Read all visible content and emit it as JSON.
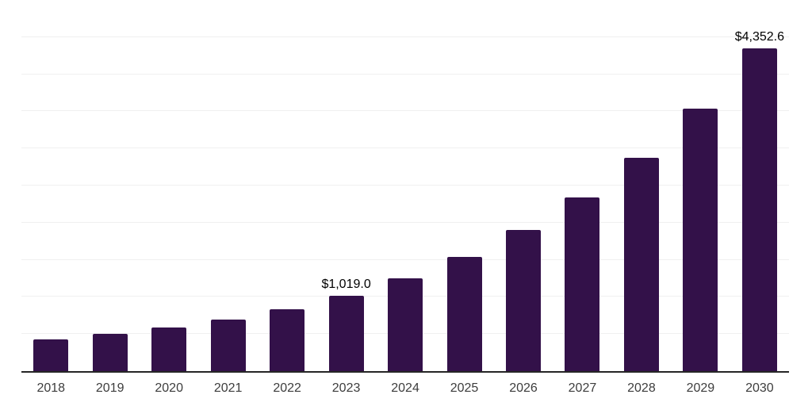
{
  "chart_data": {
    "type": "bar",
    "title": "",
    "xlabel": "",
    "ylabel": "",
    "categories": [
      "2018",
      "2019",
      "2020",
      "2021",
      "2022",
      "2023",
      "2024",
      "2025",
      "2026",
      "2027",
      "2028",
      "2029",
      "2030"
    ],
    "values": [
      425,
      503,
      592,
      699,
      833,
      1019.0,
      1254,
      1543,
      1898,
      2336,
      2874,
      3537,
      4352.6
    ],
    "data_labels": [
      {
        "category": "2023",
        "label": "$1,019.0"
      },
      {
        "category": "2030",
        "label": "$4,352.6"
      }
    ],
    "ylim": [
      0,
      5000
    ],
    "gridline_step": 500,
    "grid": "horizontal",
    "legend": "none",
    "colors": {
      "bar": "#331149",
      "axis_line": "#262626",
      "gridline": "#f0f0f0",
      "tick_label": "#3d3d3d",
      "data_label": "#000000",
      "background": "#ffffff"
    }
  }
}
